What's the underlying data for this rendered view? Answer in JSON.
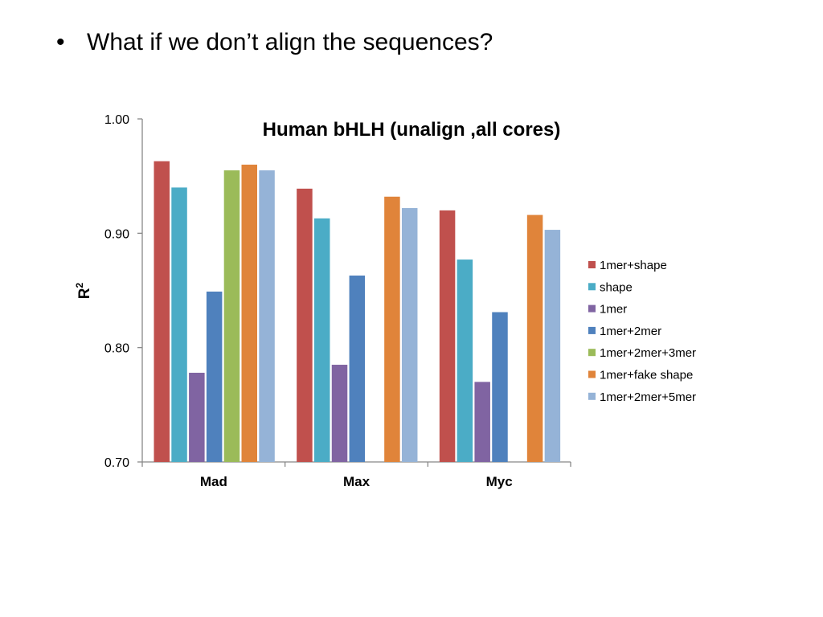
{
  "slide": {
    "bullet_marker": "•",
    "bullet_text": "What if we don’t align the sequences?"
  },
  "chart_data": {
    "type": "bar",
    "title": "Human bHLH (unalign ,all cores)",
    "xlabel": "",
    "ylabel": "R",
    "ylabel_superscript": "2",
    "ylim": [
      0.7,
      1.0
    ],
    "yticks": [
      "1.00",
      "0.90",
      "0.80",
      "0.70"
    ],
    "grid": false,
    "legend_position": "right",
    "categories": [
      "Mad",
      "Max",
      "Myc"
    ],
    "series": [
      {
        "name": "1mer+shape",
        "color": "#c0504d",
        "values": [
          0.963,
          0.939,
          0.92
        ]
      },
      {
        "name": "shape",
        "color": "#4bacc6",
        "values": [
          0.94,
          0.913,
          0.877
        ]
      },
      {
        "name": "1mer",
        "color": "#8064a2",
        "values": [
          0.778,
          0.785,
          0.77
        ]
      },
      {
        "name": "1mer+2mer",
        "color": "#4f81bd",
        "values": [
          0.849,
          0.863,
          0.831
        ]
      },
      {
        "name": "1mer+2mer+3mer",
        "color": "#9bbb59",
        "values": [
          0.955,
          null,
          null
        ]
      },
      {
        "name": "1mer+fake shape",
        "color": "#e0843a",
        "values": [
          0.96,
          0.932,
          0.916
        ]
      },
      {
        "name": "1mer+2mer+5mer",
        "color": "#95b3d7",
        "values": [
          0.955,
          0.922,
          0.903
        ]
      }
    ]
  }
}
